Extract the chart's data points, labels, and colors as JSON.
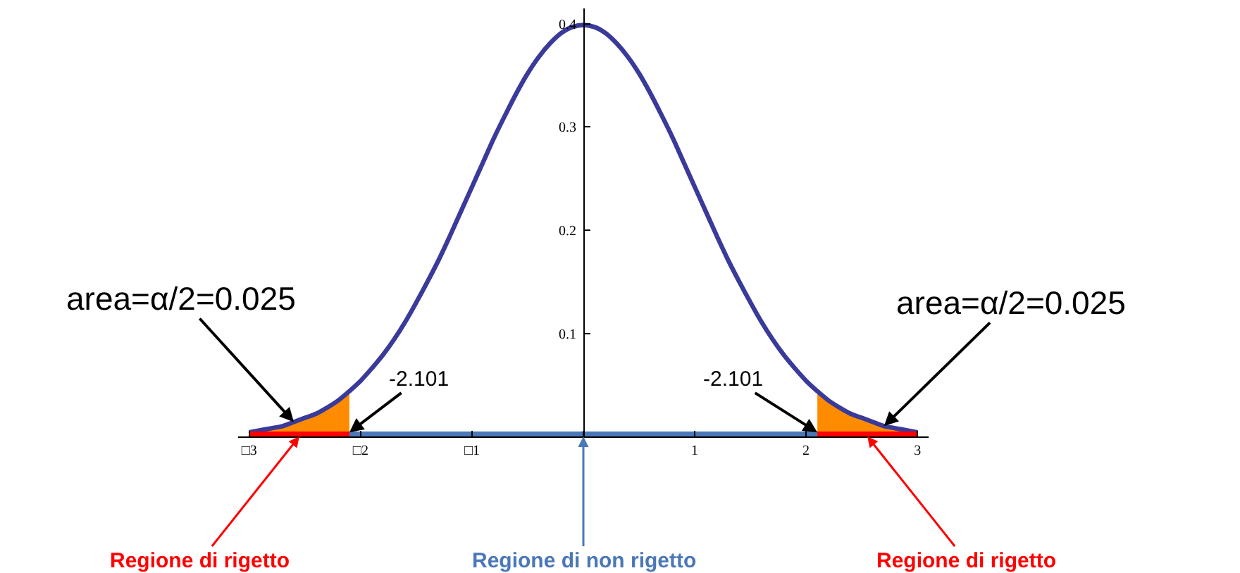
{
  "chart_data": {
    "type": "line",
    "series": [
      {
        "type": "area",
        "color": "#ff8c00",
        "x": [
          -3.0,
          -2.9,
          -2.8,
          -2.7,
          -2.6,
          -2.5,
          -2.4,
          -2.3,
          -2.2,
          -2.101
        ],
        "values": [
          0.004,
          0.006,
          0.008,
          0.01,
          0.014,
          0.018,
          0.022,
          0.028,
          0.035,
          0.044
        ]
      },
      {
        "type": "area",
        "color": "#ff8c00",
        "x": [
          2.101,
          2.2,
          2.3,
          2.4,
          2.5,
          2.6,
          2.7,
          2.8,
          2.9,
          3.0
        ],
        "values": [
          0.044,
          0.035,
          0.028,
          0.022,
          0.018,
          0.014,
          0.01,
          0.008,
          0.006,
          0.004
        ]
      },
      {
        "color": "#3a3a9a",
        "x": [
          -3.0,
          -2.9,
          -2.8,
          -2.7,
          -2.6,
          -2.5,
          -2.4,
          -2.3,
          -2.2,
          -2.1,
          -2.0,
          -1.9,
          -1.8,
          -1.7,
          -1.6,
          -1.5,
          -1.4,
          -1.3,
          -1.2,
          -1.1,
          -1.0,
          -0.9,
          -0.8,
          -0.7,
          -0.6,
          -0.5,
          -0.4,
          -0.3,
          -0.2,
          -0.1,
          0.0,
          0.1,
          0.2,
          0.3,
          0.4,
          0.5,
          0.6,
          0.7,
          0.8,
          0.9,
          1.0,
          1.1,
          1.2,
          1.3,
          1.4,
          1.5,
          1.6,
          1.7,
          1.8,
          1.9,
          2.0,
          2.1,
          2.2,
          2.3,
          2.4,
          2.5,
          2.6,
          2.7,
          2.8,
          2.9,
          3.0
        ],
        "values": [
          0.004,
          0.006,
          0.008,
          0.01,
          0.014,
          0.018,
          0.022,
          0.028,
          0.035,
          0.044,
          0.054,
          0.066,
          0.079,
          0.094,
          0.111,
          0.13,
          0.15,
          0.171,
          0.194,
          0.218,
          0.242,
          0.266,
          0.29,
          0.312,
          0.333,
          0.352,
          0.368,
          0.381,
          0.391,
          0.397,
          0.399,
          0.397,
          0.391,
          0.381,
          0.368,
          0.352,
          0.333,
          0.312,
          0.29,
          0.266,
          0.242,
          0.218,
          0.194,
          0.171,
          0.15,
          0.13,
          0.111,
          0.094,
          0.079,
          0.066,
          0.054,
          0.044,
          0.035,
          0.028,
          0.022,
          0.018,
          0.014,
          0.01,
          0.008,
          0.006,
          0.004
        ]
      },
      {
        "color": "#ff0000",
        "x": [
          -3,
          -2.101
        ],
        "values": [
          0,
          0
        ]
      },
      {
        "color": "#4a78b8",
        "x": [
          -2.101,
          2.101
        ],
        "values": [
          0,
          0
        ]
      },
      {
        "color": "#ff0000",
        "x": [
          2.101,
          3
        ],
        "values": [
          0,
          0
        ]
      }
    ],
    "xlim": [
      -3.1,
      3.1
    ],
    "ylim": [
      0,
      0.415
    ],
    "xticks": [
      {
        "value": -3,
        "label": "□3"
      },
      {
        "value": -2,
        "label": "□2"
      },
      {
        "value": -1,
        "label": "□1"
      },
      {
        "value": 0,
        "label": null
      },
      1,
      2,
      3
    ],
    "yticks": [
      0.1,
      0.2,
      0.3,
      0.4
    ],
    "marker": "none",
    "line_style": "solid",
    "annotations": [
      {
        "text": "area=α/2=0.025",
        "x": -2.6,
        "y": 0.014
      },
      {
        "text": "-2.101",
        "x": -2.101,
        "y": 0.004
      },
      {
        "text": "-2.101",
        "x": 2.101,
        "y": 0.004
      },
      {
        "text": "area=α/2=0.025",
        "x": 2.7,
        "y": 0.01
      },
      {
        "text": "Regione di rigetto",
        "x": -2.55,
        "y": 0
      },
      {
        "text": "Regione di non rigetto",
        "x": 0,
        "y": 0
      },
      {
        "text": "Regione di rigetto",
        "x": 2.55,
        "y": 0
      }
    ]
  }
}
